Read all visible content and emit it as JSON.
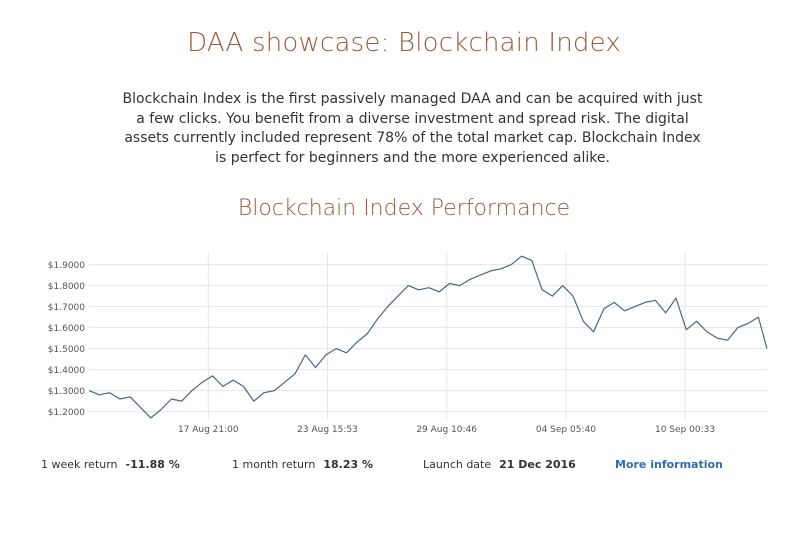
{
  "header": {
    "title": "DAA showcase: Blockchain Index",
    "intro": "Blockchain Index is the first passively managed DAA and can be acquired with just a few clicks. You benefit from a diverse investment and spread risk. The digital assets currently included represent 78% of the total market cap. Blockchain Index is perfect for beginners and the more experienced alike."
  },
  "chart_data": {
    "type": "line",
    "title": "Blockchain Index Performance",
    "xlabel": "",
    "ylabel": "",
    "grid": true,
    "legend": "none",
    "line_color": "#4a6786",
    "grid_color": "#e6e6e6",
    "x_ticks": [
      "17 Aug 21:00",
      "23 Aug 15:53",
      "29 Aug 10:46",
      "04 Sep 05:40",
      "10 Sep 00:33"
    ],
    "y_ticks": [
      "$1.2000",
      "$1.3000",
      "$1.4000",
      "$1.5000",
      "$1.6000",
      "$1.7000",
      "$1.8000",
      "$1.9000"
    ],
    "ylim": [
      1.16,
      1.96
    ],
    "xlim": [
      "12 Aug 02:00",
      "14 Sep 00:00"
    ],
    "series": [
      {
        "x": [
          "12 Aug 02:00",
          "12 Aug 14:00",
          "13 Aug 02:00",
          "13 Aug 14:00",
          "14 Aug 02:00",
          "14 Aug 14:00",
          "15 Aug 02:00",
          "15 Aug 14:00",
          "16 Aug 02:00",
          "16 Aug 14:00",
          "17 Aug 02:00",
          "17 Aug 14:00",
          "18 Aug 02:00",
          "18 Aug 14:00",
          "19 Aug 02:00",
          "19 Aug 14:00",
          "20 Aug 02:00",
          "20 Aug 14:00",
          "21 Aug 02:00",
          "21 Aug 14:00",
          "22 Aug 02:00",
          "22 Aug 14:00",
          "23 Aug 02:00",
          "23 Aug 14:00",
          "24 Aug 02:00",
          "24 Aug 14:00",
          "25 Aug 02:00",
          "25 Aug 14:00",
          "26 Aug 02:00",
          "26 Aug 14:00",
          "27 Aug 02:00",
          "27 Aug 14:00",
          "28 Aug 02:00",
          "28 Aug 14:00",
          "29 Aug 02:00",
          "29 Aug 14:00",
          "30 Aug 02:00",
          "30 Aug 14:00",
          "31 Aug 02:00",
          "31 Aug 14:00",
          "01 Sep 02:00",
          "01 Sep 14:00",
          "02 Sep 02:00",
          "02 Sep 14:00",
          "03 Sep 02:00",
          "03 Sep 14:00",
          "04 Sep 02:00",
          "04 Sep 14:00",
          "05 Sep 02:00",
          "05 Sep 14:00",
          "06 Sep 02:00",
          "06 Sep 14:00",
          "07 Sep 02:00",
          "07 Sep 14:00",
          "08 Sep 02:00",
          "08 Sep 14:00",
          "09 Sep 02:00",
          "09 Sep 14:00",
          "10 Sep 02:00",
          "10 Sep 14:00",
          "11 Sep 02:00",
          "11 Sep 14:00",
          "12 Sep 02:00",
          "12 Sep 14:00",
          "13 Sep 02:00",
          "13 Sep 14:00",
          "14 Sep 00:00"
        ],
        "values": [
          1.3,
          1.28,
          1.29,
          1.26,
          1.27,
          1.22,
          1.17,
          1.21,
          1.26,
          1.25,
          1.3,
          1.34,
          1.37,
          1.32,
          1.35,
          1.32,
          1.25,
          1.29,
          1.3,
          1.34,
          1.38,
          1.47,
          1.41,
          1.47,
          1.5,
          1.48,
          1.53,
          1.57,
          1.64,
          1.7,
          1.75,
          1.8,
          1.78,
          1.79,
          1.77,
          1.81,
          1.8,
          1.83,
          1.85,
          1.87,
          1.88,
          1.9,
          1.94,
          1.92,
          1.78,
          1.75,
          1.8,
          1.75,
          1.63,
          1.58,
          1.69,
          1.72,
          1.68,
          1.7,
          1.72,
          1.73,
          1.67,
          1.74,
          1.59,
          1.63,
          1.58,
          1.55,
          1.54,
          1.6,
          1.62,
          1.65,
          1.5
        ]
      }
    ]
  },
  "stats": {
    "week_label": "1 week return",
    "week_value": "-11.88 %",
    "month_label": "1 month return",
    "month_value": "18.23 %",
    "launch_label": "Launch date",
    "launch_value": "21 Dec 2016",
    "more_label": "More information"
  }
}
